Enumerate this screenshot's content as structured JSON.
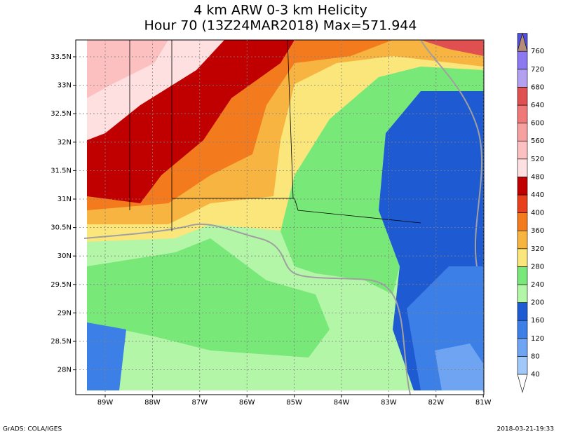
{
  "header": {
    "title_line1": "4 km ARW 0-3 km Helicity",
    "title_line2": "Hour 70 (13Z24MAR2018) Max=571.944"
  },
  "map": {
    "lat_labels": [
      "33.5N",
      "33N",
      "32.5N",
      "32N",
      "31.5N",
      "31N",
      "30.5N",
      "30N",
      "29.5N",
      "29N",
      "28.5N",
      "28N"
    ],
    "lon_labels": [
      "89W",
      "88W",
      "87W",
      "86W",
      "85W",
      "84W",
      "83W",
      "82W",
      "81W"
    ]
  },
  "colorbar": {
    "labels": [
      "40",
      "80",
      "120",
      "160",
      "200",
      "240",
      "280",
      "320",
      "360",
      "400",
      "440",
      "480",
      "520",
      "560",
      "600",
      "640",
      "680",
      "720",
      "760"
    ],
    "colors": [
      "#ffffff",
      "#a0c8f8",
      "#6ea4f2",
      "#3c7fe6",
      "#1e5ad2",
      "#b4f6a8",
      "#78e878",
      "#fae67a",
      "#f8b440",
      "#f47a1e",
      "#e8401a",
      "#c00000",
      "#ffe0e0",
      "#fcc0c0",
      "#f6a0a0",
      "#f07878",
      "#e05050",
      "#b4a0f0",
      "#8c78f0",
      "#5050dc",
      "#b48c78"
    ]
  },
  "footer": {
    "left": "GrADS: COLA/IGES",
    "right": "2018-03-21-19:33"
  }
}
